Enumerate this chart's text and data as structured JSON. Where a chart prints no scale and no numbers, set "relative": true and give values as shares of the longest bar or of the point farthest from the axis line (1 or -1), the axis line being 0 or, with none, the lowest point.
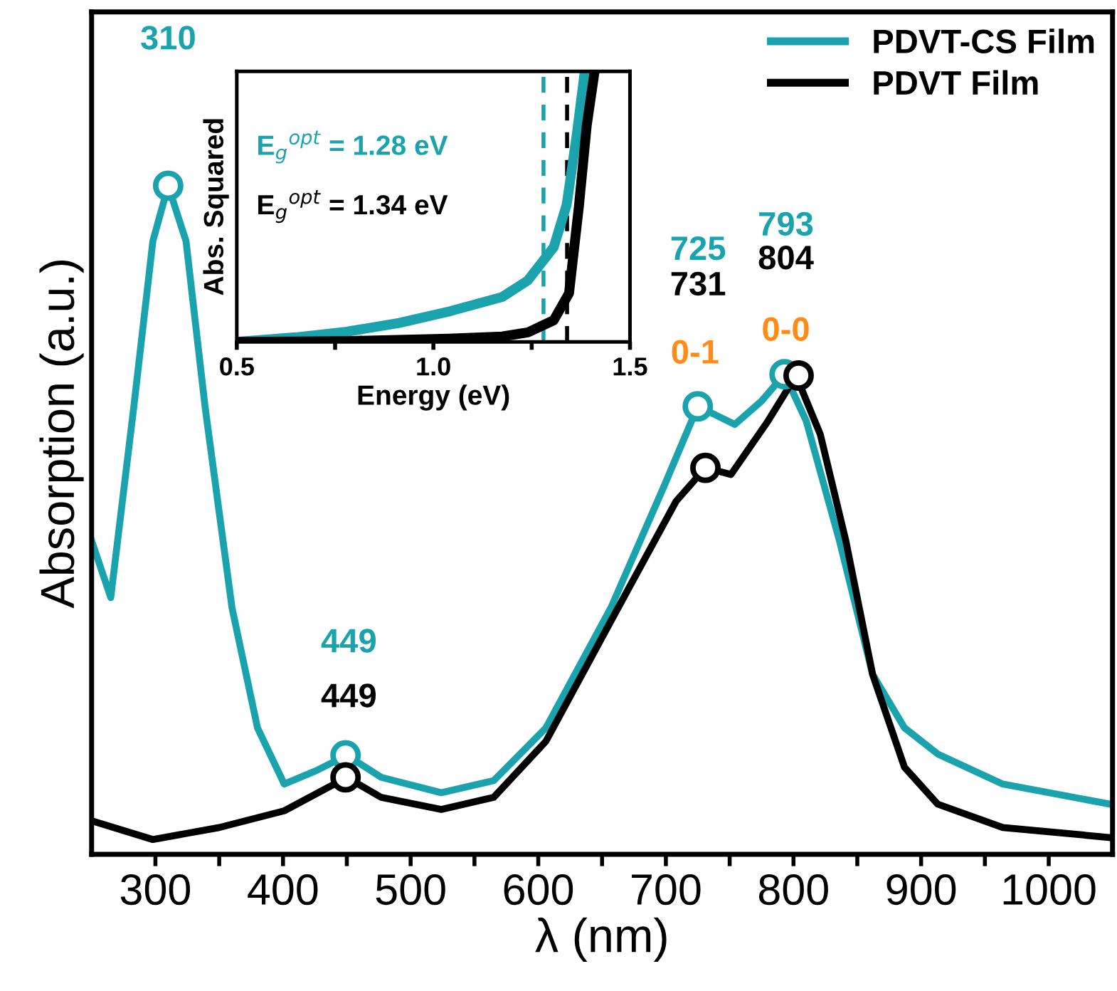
{
  "chart_data": [
    {
      "type": "line",
      "xlabel": "λ (nm)",
      "ylabel": "Absorption (a.u.)",
      "relative": true,
      "xlim": [
        250,
        1050
      ],
      "xticks": [
        300,
        {
          "value": 350,
          "label": null
        },
        400,
        {
          "value": 450,
          "label": null
        },
        500,
        {
          "value": 550,
          "label": null
        },
        600,
        {
          "value": 650,
          "label": null
        },
        700,
        {
          "value": 750,
          "label": null
        },
        800,
        {
          "value": 850,
          "label": null
        },
        900,
        {
          "value": 950,
          "label": null
        },
        1000
      ],
      "tick_labels": "x",
      "grid": false,
      "legend": "top right",
      "line_style": "solid",
      "series": [
        {
          "name": "PDVT-CS Film",
          "color": "#1ba3ad",
          "x": [
            250,
            265,
            283,
            298,
            310,
            324,
            339,
            360,
            380,
            401,
            426,
            450,
            477,
            524,
            565,
            606,
            657,
            698,
            725,
            754,
            775,
            793,
            810,
            836,
            862,
            887,
            913,
            964,
            1048
          ],
          "values": [
            0.469,
            0.384,
            0.668,
            0.917,
            1.0,
            0.917,
            0.668,
            0.369,
            0.189,
            0.105,
            0.125,
            0.148,
            0.115,
            0.092,
            0.11,
            0.189,
            0.369,
            0.548,
            0.67,
            0.643,
            0.678,
            0.718,
            0.648,
            0.469,
            0.269,
            0.189,
            0.15,
            0.105,
            0.075
          ]
        },
        {
          "name": "PDVT Film",
          "color": "#000000",
          "x": [
            250,
            298,
            350,
            401,
            450,
            477,
            524,
            565,
            606,
            657,
            708,
            731,
            751,
            780,
            802,
            821,
            841,
            862,
            887,
            913,
            964,
            1048
          ],
          "values": [
            0.05,
            0.022,
            0.04,
            0.065,
            0.115,
            0.085,
            0.067,
            0.085,
            0.169,
            0.349,
            0.528,
            0.578,
            0.568,
            0.648,
            0.716,
            0.628,
            0.469,
            0.269,
            0.13,
            0.075,
            0.04,
            0.025
          ]
        },
        {
          "type": "scatter",
          "marker": "circle",
          "color": "#1ba3ad",
          "x": [
            310,
            449,
            725,
            793
          ],
          "values": [
            1.0,
            0.148,
            0.67,
            0.718
          ]
        },
        {
          "type": "scatter",
          "marker": "circle",
          "color": "#000000",
          "x": [
            449,
            731,
            804
          ],
          "values": [
            0.115,
            0.578,
            0.716
          ]
        }
      ],
      "annotations": [
        "310",
        "449",
        "449",
        "725",
        "731",
        "793",
        "804",
        "0-1",
        "0-0"
      ]
    },
    {
      "type": "line",
      "xlabel": "Energy (eV)",
      "ylabel": "Abs. Squared",
      "relative": true,
      "xlim": [
        0.5,
        1.5
      ],
      "xticks": [
        0.5,
        {
          "value": 0.75,
          "label": null
        },
        {
          "value": 1.0,
          "label": "1.0"
        },
        {
          "value": 1.25,
          "label": null
        },
        1.5
      ],
      "tick_labels": "x",
      "series": [
        {
          "color": "#1ba3ad",
          "x": [
            0.5,
            0.65,
            0.78,
            0.913,
            1.044,
            1.175,
            1.24,
            1.306,
            1.339,
            1.365,
            1.385
          ],
          "values": [
            0.0,
            0.017,
            0.038,
            0.07,
            0.114,
            0.166,
            0.227,
            0.35,
            0.507,
            0.77,
            1.0
          ]
        },
        {
          "color": "#000000",
          "x": [
            0.5,
            0.78,
            1.04,
            1.175,
            1.24,
            1.306,
            1.345,
            1.37,
            1.39,
            1.41
          ],
          "values": [
            0.0,
            0.003,
            0.012,
            0.02,
            0.035,
            0.08,
            0.18,
            0.5,
            0.8,
            1.0
          ]
        }
      ],
      "ref_lines": [
        {
          "axis": "x",
          "value": 1.28,
          "color": "#1ba3ad",
          "line_style": "dashed"
        },
        {
          "axis": "x",
          "value": 1.34,
          "color": "#000000",
          "line_style": "dashed"
        }
      ],
      "annotations": [
        "E$_{g}$$^{opt}$ = 1.28 eV",
        "E$_{g}$$^{opt}$ = 1.34 eV"
      ]
    }
  ]
}
